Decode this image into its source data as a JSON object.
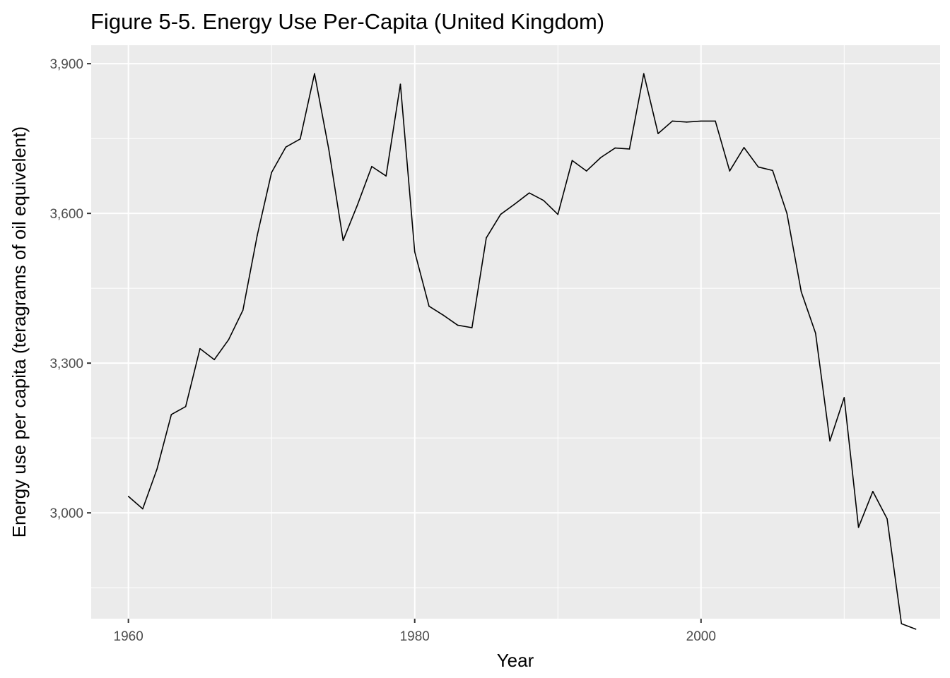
{
  "chart_data": {
    "type": "line",
    "title": "Figure 5-5. Energy Use Per-Capita (United Kingdom)",
    "xlabel": "Year",
    "ylabel": "Energy use per capita (teragrams of oil equivelent)",
    "xlim": [
      1957.4,
      2016.7
    ],
    "ylim": [
      2788,
      3937
    ],
    "x_ticks": [
      1960,
      1980,
      2000
    ],
    "x_tick_labels": [
      "1960",
      "1980",
      "2000"
    ],
    "y_ticks": [
      3000,
      3300,
      3600,
      3900
    ],
    "y_tick_labels": [
      "3,000",
      "3,300",
      "3,600",
      "3,900"
    ],
    "x_minor_ticks": [
      1970,
      1990,
      2010
    ],
    "y_minor_ticks": [
      2850,
      3150,
      3450,
      3750
    ],
    "grid": true,
    "colors": {
      "panel_background": "#ebebeb",
      "grid_line": "#ffffff",
      "series_line": "#000000"
    },
    "series": [
      {
        "x": [
          1960,
          1961,
          1962,
          1963,
          1964,
          1965,
          1966,
          1967,
          1968,
          1969,
          1970,
          1971,
          1972,
          1973,
          1974,
          1975,
          1976,
          1977,
          1978,
          1979,
          1980,
          1981,
          1982,
          1983,
          1984,
          1985,
          1986,
          1987,
          1988,
          1989,
          1990,
          1991,
          1992,
          1993,
          1994,
          1995,
          1996,
          1997,
          1998,
          1999,
          2000,
          2001,
          2002,
          2003,
          2004,
          2005,
          2006,
          2007,
          2008,
          2009,
          2010,
          2011,
          2012,
          2013,
          2014,
          2015
        ],
        "values": [
          3033,
          3008,
          3088,
          3197,
          3213,
          3329,
          3307,
          3347,
          3406,
          3556,
          3682,
          3733,
          3749,
          3880,
          3728,
          3546,
          3617,
          3694,
          3675,
          3859,
          3523,
          3414,
          3396,
          3376,
          3371,
          3551,
          3598,
          3619,
          3641,
          3626,
          3598,
          3706,
          3685,
          3712,
          3731,
          3729,
          3880,
          3760,
          3785,
          3783,
          3785,
          3785,
          3685,
          3732,
          3693,
          3686,
          3600,
          3443,
          3360,
          3144,
          3231,
          2971,
          3043,
          2988,
          2778,
          2767
        ]
      }
    ]
  }
}
